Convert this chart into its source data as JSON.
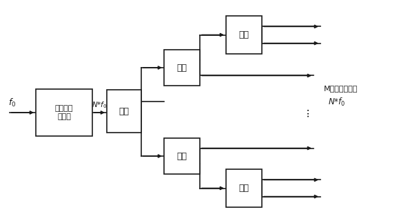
{
  "bg_color": "#ffffff",
  "line_color": "#1a1a1a",
  "text_color": "#1a1a1a",
  "figsize": [
    5.79,
    3.2
  ],
  "dpi": 100,
  "gen_label": "梳谐信号\n发生器",
  "gf_label": "功分",
  "f0_label": "f₀",
  "nf0_label": "N*f₀",
  "right_label1": "M路梳状谱信号",
  "right_label2": "N*f₀",
  "dots": "···"
}
